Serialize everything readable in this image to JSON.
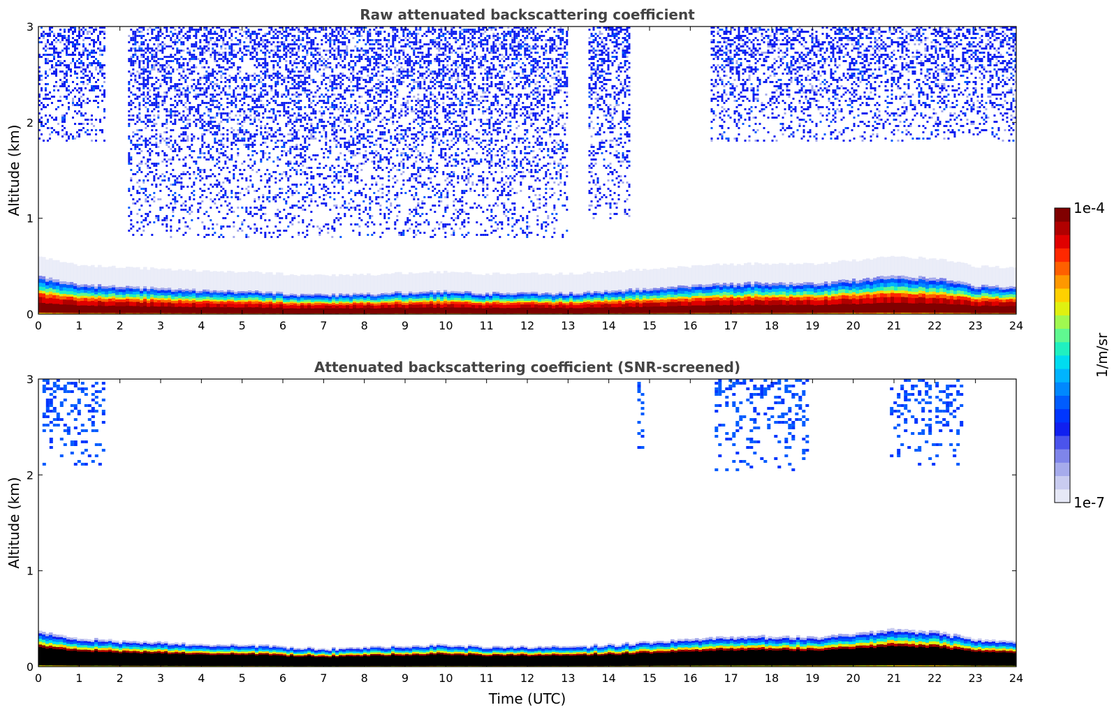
{
  "colorbar": {
    "label": "1/m/sr",
    "max_label": "1e-4",
    "min_label": "1e-7",
    "colors": [
      "#e6e8f6",
      "#c9ccf0",
      "#a6abec",
      "#7f85ea",
      "#4b54ec",
      "#1020f0",
      "#0036ff",
      "#005cff",
      "#0088ff",
      "#00b4ff",
      "#00dcf0",
      "#20f0c0",
      "#60f890",
      "#a0f850",
      "#e0f010",
      "#ffd000",
      "#ff9800",
      "#ff6000",
      "#ff2800",
      "#e00000",
      "#b00000",
      "#800000"
    ]
  },
  "chart_data": [
    {
      "type": "heatmap",
      "title": "Raw attenuated backscattering coefficient",
      "xlabel": "",
      "ylabel": "Altitude (km)",
      "xlim": [
        0,
        24
      ],
      "ylim": [
        0,
        3
      ],
      "x_ticks": [
        "0",
        "1",
        "2",
        "3",
        "4",
        "5",
        "6",
        "7",
        "8",
        "9",
        "10",
        "11",
        "12",
        "13",
        "14",
        "15",
        "16",
        "17",
        "18",
        "19",
        "20",
        "21",
        "22",
        "23",
        "24"
      ],
      "y_ticks": [
        "0",
        "1",
        "2",
        "3"
      ],
      "color_scale": "log",
      "zlim": [
        1e-07,
        0.0001
      ],
      "layer_top_km": [
        0.4,
        0.31,
        0.29,
        0.27,
        0.25,
        0.24,
        0.22,
        0.2,
        0.21,
        0.23,
        0.24,
        0.22,
        0.22,
        0.22,
        0.24,
        0.27,
        0.3,
        0.32,
        0.33,
        0.32,
        0.36,
        0.4,
        0.38,
        0.3,
        0.28
      ],
      "elevated_signal_regions": [
        {
          "time_start": 0,
          "time_end": 1.6,
          "altitude_min_km": 1.8,
          "altitude_max_km": 3
        },
        {
          "time_start": 2.2,
          "time_end": 13,
          "altitude_min_km": 0.8,
          "altitude_max_km": 3
        },
        {
          "time_start": 13.5,
          "time_end": 14.5,
          "altitude_min_km": 1.0,
          "altitude_max_km": 3
        },
        {
          "time_start": 16.5,
          "time_end": 24,
          "altitude_min_km": 1.8,
          "altitude_max_km": 3
        }
      ]
    },
    {
      "type": "heatmap",
      "title": "Attenuated backscattering coefficient (SNR-screened)",
      "xlabel": "Time (UTC)",
      "ylabel": "Altitude (km)",
      "xlim": [
        0,
        24
      ],
      "ylim": [
        0,
        3
      ],
      "x_ticks": [
        "0",
        "1",
        "2",
        "3",
        "4",
        "5",
        "6",
        "7",
        "8",
        "9",
        "10",
        "11",
        "12",
        "13",
        "14",
        "15",
        "16",
        "17",
        "18",
        "19",
        "20",
        "21",
        "22",
        "23",
        "24"
      ],
      "y_ticks": [
        "0",
        "1",
        "2",
        "3"
      ],
      "color_scale": "log",
      "zlim": [
        1e-07,
        0.0001
      ],
      "layer_top_km": [
        0.37,
        0.3,
        0.27,
        0.25,
        0.24,
        0.23,
        0.21,
        0.19,
        0.2,
        0.22,
        0.23,
        0.21,
        0.21,
        0.21,
        0.23,
        0.26,
        0.29,
        0.31,
        0.32,
        0.31,
        0.35,
        0.39,
        0.37,
        0.29,
        0.27
      ],
      "elevated_signal_regions": [
        {
          "time_start": 0.1,
          "time_end": 1.6,
          "altitude_min_km": 2.1,
          "altitude_max_km": 3
        },
        {
          "time_start": 14.7,
          "time_end": 14.8,
          "altitude_min_km": 2.2,
          "altitude_max_km": 3
        },
        {
          "time_start": 16.6,
          "time_end": 18.9,
          "altitude_min_km": 2.05,
          "altitude_max_km": 3
        },
        {
          "time_start": 20.9,
          "time_end": 22.7,
          "altitude_min_km": 2.1,
          "altitude_max_km": 3
        }
      ]
    }
  ]
}
